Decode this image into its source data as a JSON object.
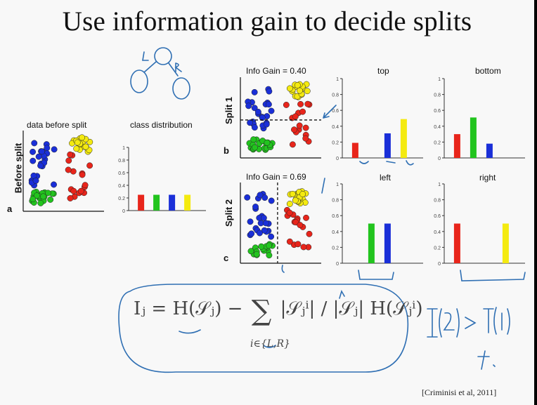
{
  "title": "Use information gain to decide splits",
  "panels": {
    "before": {
      "scatter_title": "data before split",
      "chart_title": "class distribution",
      "row_label": "Before split",
      "letter": "a"
    },
    "split1": {
      "info_gain": "Info Gain = 0.40",
      "left_title": "top",
      "right_title": "bottom",
      "row_label": "Split 1",
      "letter": "b"
    },
    "split2": {
      "info_gain": "Info Gain = 0.69",
      "left_title": "left",
      "right_title": "right",
      "row_label": "Split 2",
      "letter": "c"
    }
  },
  "formula": {
    "lhs": "Iⱼ = H(𝒮ⱼ) −",
    "sum_symbol": "∑",
    "fraction": "|𝒮ⱼⁱ| / |𝒮ⱼ|",
    "tail": "H(𝒮ⱼⁱ)",
    "subscript": "i∈{L,R}"
  },
  "annotations": {
    "handwritten_note": "I(2) > I(1)"
  },
  "citation": "[Criminisi et al, 2011]",
  "colors": {
    "red": "#e8251b",
    "green": "#22c41e",
    "blue": "#1a2fd8",
    "yellow": "#f4ea10",
    "ink": "#2f6fb3"
  },
  "chart_data": [
    {
      "type": "bar",
      "title": "class distribution",
      "categories": [
        "red",
        "green",
        "blue",
        "yellow"
      ],
      "values": [
        0.25,
        0.25,
        0.25,
        0.25
      ],
      "yticks": [
        "0",
        "0.2",
        "0.4",
        "0.6",
        "0.8",
        "1"
      ],
      "ylim": [
        0,
        1
      ]
    },
    {
      "type": "bar",
      "title": "top",
      "categories": [
        "red",
        "green",
        "blue",
        "yellow"
      ],
      "values": [
        0.19,
        0,
        0.31,
        0.49
      ],
      "yticks": [
        "0",
        "0.2",
        "0.4",
        "0.6",
        "0.8",
        "1"
      ],
      "ylim": [
        0,
        1
      ]
    },
    {
      "type": "bar",
      "title": "bottom",
      "categories": [
        "red",
        "green",
        "blue",
        "yellow"
      ],
      "values": [
        0.3,
        0.51,
        0.18,
        0
      ],
      "yticks": [
        "0",
        "0.2",
        "0.4",
        "0.6",
        "0.8",
        "1"
      ],
      "ylim": [
        0,
        1
      ]
    },
    {
      "type": "bar",
      "title": "left",
      "categories": [
        "red",
        "green",
        "blue",
        "yellow"
      ],
      "values": [
        0,
        0.5,
        0.5,
        0
      ],
      "yticks": [
        "0",
        "0.2",
        "0.4",
        "0.6",
        "0.8",
        "1"
      ],
      "ylim": [
        0,
        1
      ]
    },
    {
      "type": "bar",
      "title": "right",
      "categories": [
        "red",
        "green",
        "blue",
        "yellow"
      ],
      "values": [
        0.5,
        0,
        0,
        0.5
      ],
      "yticks": [
        "0",
        "0.2",
        "0.4",
        "0.6",
        "0.8",
        "1"
      ],
      "ylim": [
        0,
        1
      ]
    }
  ]
}
